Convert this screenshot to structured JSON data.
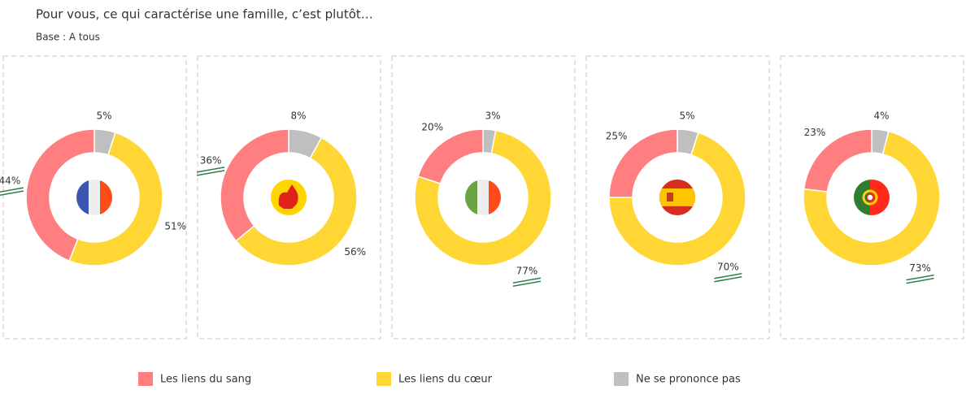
{
  "title": "Pour vous, ce qui caractérise une famille, c’est plutôt…",
  "subtitle": "Base : A tous",
  "chart_data": [
    {
      "type": "pie",
      "donut": true,
      "categories": [
        "Les liens du sang",
        "Les liens du cœur",
        "Ne se prononce pas"
      ],
      "colors": [
        "#ff7f80",
        "#ffd633",
        "#bfbfbf"
      ],
      "values": [
        44,
        51,
        5
      ],
      "value_labels": [
        "44%",
        "51%",
        "5%"
      ],
      "highlight": 0
    },
    {
      "type": "pie",
      "donut": true,
      "categories": [
        "Les liens du sang",
        "Les liens du cœur",
        "Ne se prononce pas"
      ],
      "colors": [
        "#ff7f80",
        "#ffd633",
        "#bfbfbf"
      ],
      "values": [
        36,
        56,
        8
      ],
      "value_labels": [
        "36%",
        "56%",
        "8%"
      ],
      "highlight": 0
    },
    {
      "type": "pie",
      "donut": true,
      "categories": [
        "Les liens du sang",
        "Les liens du cœur",
        "Ne se prononce pas"
      ],
      "colors": [
        "#ff7f80",
        "#ffd633",
        "#bfbfbf"
      ],
      "values": [
        20,
        77,
        3
      ],
      "value_labels": [
        "20%",
        "77%",
        "3%"
      ],
      "highlight": 1
    },
    {
      "type": "pie",
      "donut": true,
      "categories": [
        "Les liens du sang",
        "Les liens du cœur",
        "Ne se prononce pas"
      ],
      "colors": [
        "#ff7f80",
        "#ffd633",
        "#bfbfbf"
      ],
      "values": [
        25,
        70,
        5
      ],
      "value_labels": [
        "25%",
        "70%",
        "5%"
      ],
      "highlight": 1
    },
    {
      "type": "pie",
      "donut": true,
      "categories": [
        "Les liens du sang",
        "Les liens du cœur",
        "Ne se prononce pas"
      ],
      "colors": [
        "#ff7f80",
        "#ffd633",
        "#bfbfbf"
      ],
      "values": [
        23,
        73,
        4
      ],
      "value_labels": [
        "23%",
        "73%",
        "4%"
      ],
      "highlight": 1
    }
  ]
}
